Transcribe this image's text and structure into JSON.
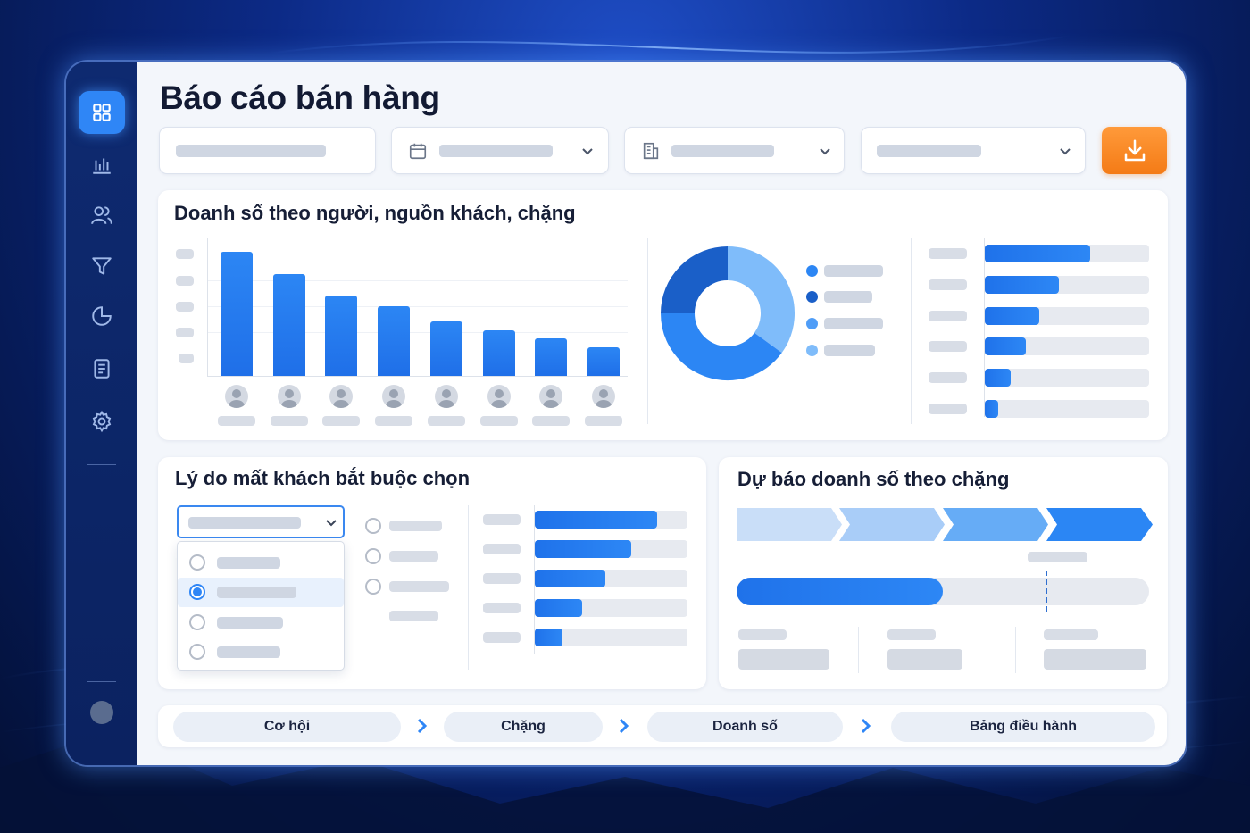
{
  "app": {
    "title": "Báo cáo bán hàng"
  },
  "sidebar": {
    "items": [
      {
        "icon": "dashboard-grid-icon",
        "active": true
      },
      {
        "icon": "bar-chart-icon",
        "active": false
      },
      {
        "icon": "users-icon",
        "active": false
      },
      {
        "icon": "filter-funnel-icon",
        "active": false
      },
      {
        "icon": "pie-chart-icon",
        "active": false
      },
      {
        "icon": "document-icon",
        "active": false
      },
      {
        "icon": "settings-gear-icon",
        "active": false
      }
    ]
  },
  "filters": {
    "export_icon": "download-icon",
    "accent": "#f47b16"
  },
  "sales_card": {
    "title": "Doanh số theo người, nguồn khách, chặng"
  },
  "lost_card": {
    "title": "Lý do mất khách bắt buộc chọn",
    "selected_option_index": 1
  },
  "forecast_card": {
    "title": "Dự báo doanh số theo chặng",
    "progress": 0.5
  },
  "flow": {
    "steps": [
      "Cơ hội",
      "Chặng",
      "Doanh số",
      "Bảng điều hành"
    ]
  },
  "colors": {
    "primary": "#2f86f6",
    "sidebar": "#0e2a70",
    "donut": [
      "#7fbcfa",
      "#2c86f4",
      "#1a5fc8"
    ]
  },
  "chart_data": [
    {
      "type": "bar",
      "values": [
        100,
        82,
        65,
        56,
        44,
        37,
        30,
        23
      ]
    },
    {
      "type": "pie",
      "values": [
        35,
        40,
        25
      ]
    },
    {
      "type": "bar",
      "orientation": "horizontal",
      "values": [
        64,
        45,
        33,
        25,
        16,
        8
      ]
    },
    {
      "type": "bar",
      "orientation": "horizontal",
      "values": [
        80,
        63,
        46,
        31,
        18
      ]
    }
  ]
}
